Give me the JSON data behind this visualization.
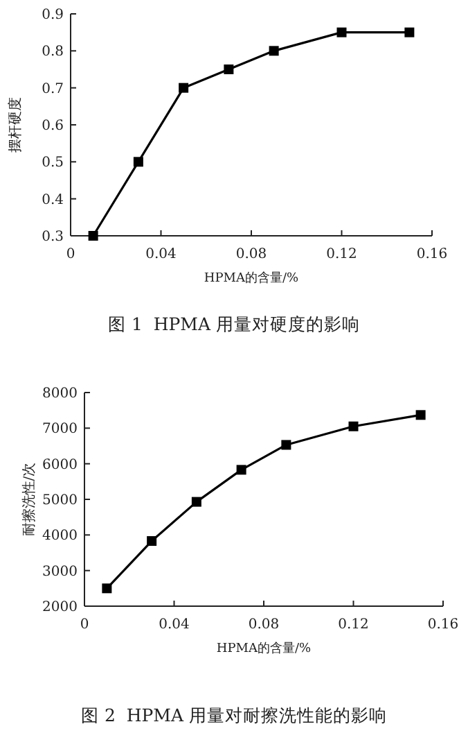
{
  "chart_data": [
    {
      "type": "line",
      "title": "图 1  HPMA 用量对硬度的影响",
      "xlabel": "HPMA的含量/%",
      "ylabel": "摆杆硬度",
      "x": [
        0.01,
        0.03,
        0.05,
        0.07,
        0.09,
        0.12,
        0.15
      ],
      "values": [
        0.3,
        0.5,
        0.7,
        0.75,
        0.8,
        0.85,
        0.85
      ],
      "color": "#000000",
      "xlim": [
        0,
        0.16
      ],
      "ylim": [
        0.3,
        0.9
      ],
      "xticks": [
        0,
        0.04,
        0.08,
        0.12,
        0.16
      ],
      "yticks": [
        0.3,
        0.4,
        0.5,
        0.6,
        0.7,
        0.8,
        0.9
      ],
      "marker": "square"
    },
    {
      "type": "line",
      "title": "图 2  HPMA 用量对耐擦洗性能的影响",
      "xlabel": "HPMA的含量/%",
      "ylabel": "耐擦洗性/次",
      "x": [
        0.01,
        0.03,
        0.05,
        0.07,
        0.09,
        0.12,
        0.15
      ],
      "values": [
        2500,
        3830,
        4930,
        5830,
        6530,
        7050,
        7370
      ],
      "color": "#000000",
      "xlim": [
        0,
        0.16
      ],
      "ylim": [
        2000,
        8000
      ],
      "xticks": [
        0,
        0.04,
        0.08,
        0.12,
        0.16
      ],
      "yticks": [
        2000,
        3000,
        4000,
        5000,
        6000,
        7000,
        8000
      ],
      "marker": "square"
    }
  ]
}
